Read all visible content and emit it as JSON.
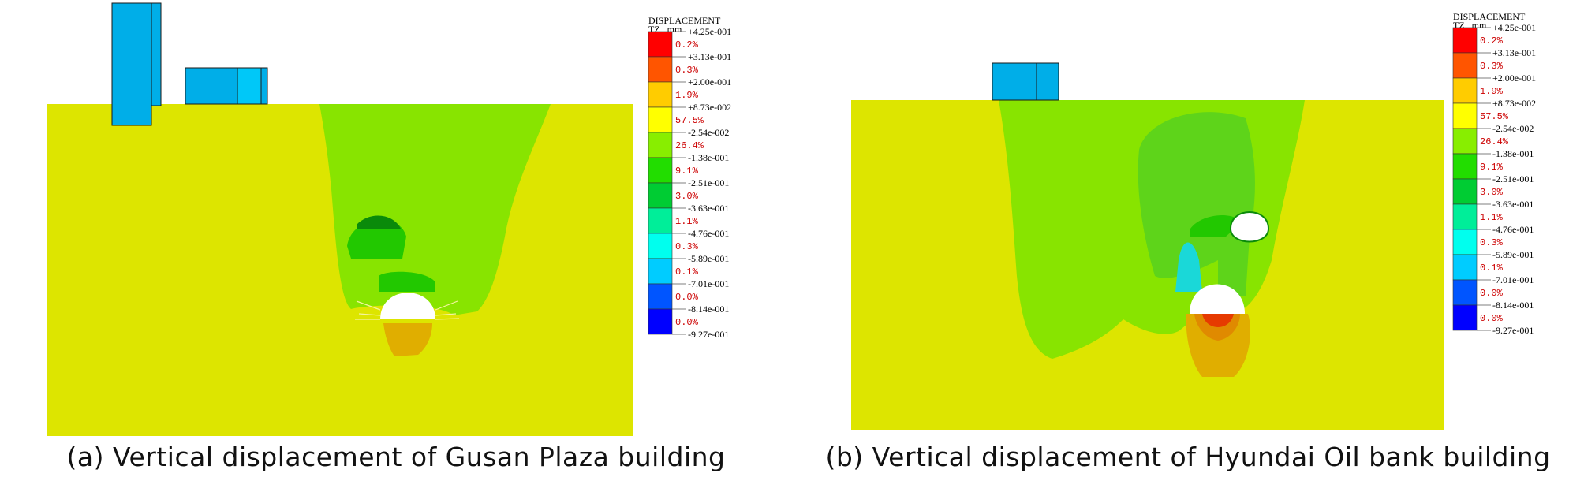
{
  "legend": {
    "title_line1": "DISPLACEMENT",
    "title_line2": "TZ , mm",
    "colors": [
      "#ff0000",
      "#ff5500",
      "#ffcc00",
      "#ffff00",
      "#88ee00",
      "#22dd00",
      "#00cc33",
      "#00ee99",
      "#00ffee",
      "#00ccff",
      "#0055ff",
      "#0000ff"
    ],
    "boundary_values": [
      "+4.25e-001",
      "+3.13e-001",
      "+2.00e-001",
      "+8.73e-002",
      "-2.54e-002",
      "-1.38e-001",
      "-2.51e-001",
      "-3.63e-001",
      "-4.76e-001",
      "-5.89e-001",
      "-7.01e-001",
      "-8.14e-001",
      "-9.27e-001"
    ],
    "percentages": [
      "0.2%",
      "0.3%",
      "1.9%",
      "57.5%",
      "26.4%",
      "9.1%",
      "3.0%",
      "1.1%",
      "0.3%",
      "0.1%",
      "0.0%",
      "0.0%"
    ]
  },
  "panels": [
    {
      "id": "a",
      "caption": "(a) Vertical displacement of Gusan Plaza building"
    },
    {
      "id": "b",
      "caption": "(b) Vertical displacement of Hyundai Oil bank building"
    }
  ],
  "colors": {
    "ground": "#dde500",
    "zone_light_green": "#88e400",
    "zone_mid_green": "#5ed41a",
    "zone_green": "#22c800",
    "zone_dark_green": "#0a8a0a",
    "zone_cyan": "#1ad8d8",
    "zone_orange": "#e0ae00",
    "zone_dark_orange": "#e08a00",
    "zone_red": "#e63a00",
    "building": "#00aee8",
    "building_light": "#00c8f8"
  }
}
